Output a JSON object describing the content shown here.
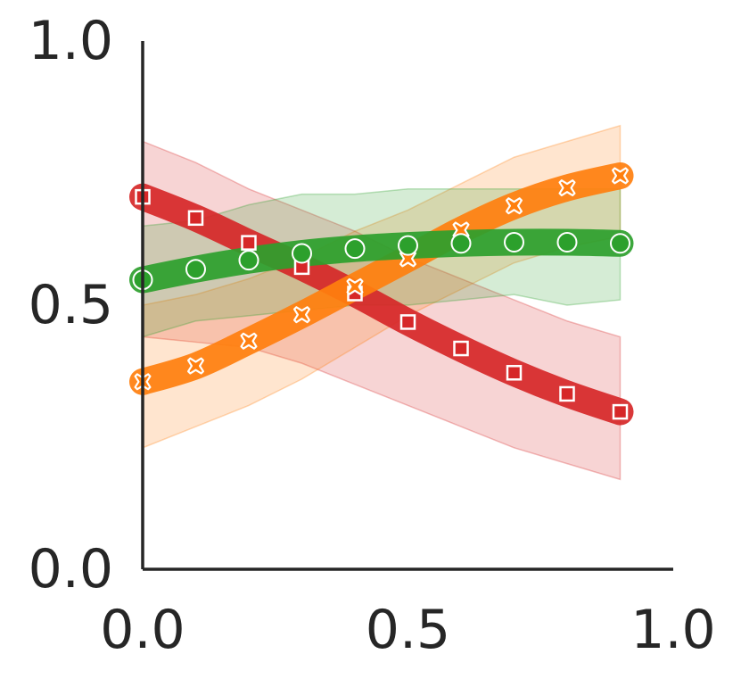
{
  "chart_data": {
    "type": "line",
    "xlim": [
      0.0,
      1.0
    ],
    "ylim": [
      0.0,
      1.0
    ],
    "grid": false,
    "legend": "none",
    "x_ticks": [
      {
        "value": 0.0,
        "label": "0.0"
      },
      {
        "value": 0.5,
        "label": "0.5"
      },
      {
        "value": 1.0,
        "label": "1.0"
      }
    ],
    "y_ticks": [
      {
        "value": 0.0,
        "label": "0.0"
      },
      {
        "value": 0.5,
        "label": "0.5"
      },
      {
        "value": 1.0,
        "label": "1.0"
      }
    ],
    "x": [
      0.0,
      0.1,
      0.2,
      0.3,
      0.4,
      0.5,
      0.6,
      0.7,
      0.8,
      0.9
    ],
    "series": [
      {
        "color": "#d62728",
        "marker": "square",
        "values": [
          0.705,
          0.665,
          0.618,
          0.572,
          0.522,
          0.468,
          0.418,
          0.372,
          0.332,
          0.298
        ],
        "lower": [
          0.44,
          0.43,
          0.42,
          0.39,
          0.35,
          0.31,
          0.27,
          0.23,
          0.2,
          0.17
        ],
        "upper": [
          0.81,
          0.77,
          0.72,
          0.68,
          0.64,
          0.59,
          0.55,
          0.51,
          0.47,
          0.44
        ]
      },
      {
        "color": "#ff7f0e",
        "marker": "x",
        "values": [
          0.355,
          0.385,
          0.432,
          0.482,
          0.535,
          0.588,
          0.642,
          0.688,
          0.722,
          0.745
        ],
        "lower": [
          0.23,
          0.27,
          0.31,
          0.36,
          0.42,
          0.48,
          0.53,
          0.58,
          0.61,
          0.63
        ],
        "upper": [
          0.5,
          0.52,
          0.55,
          0.59,
          0.64,
          0.68,
          0.73,
          0.78,
          0.81,
          0.84
        ]
      },
      {
        "color": "#2ca02c",
        "marker": "circle",
        "values": [
          0.548,
          0.568,
          0.585,
          0.598,
          0.607,
          0.613,
          0.617,
          0.619,
          0.619,
          0.617
        ],
        "lower": [
          0.44,
          0.47,
          0.48,
          0.49,
          0.5,
          0.5,
          0.51,
          0.52,
          0.5,
          0.51
        ],
        "upper": [
          0.65,
          0.66,
          0.69,
          0.71,
          0.71,
          0.72,
          0.72,
          0.72,
          0.72,
          0.72
        ]
      }
    ]
  }
}
